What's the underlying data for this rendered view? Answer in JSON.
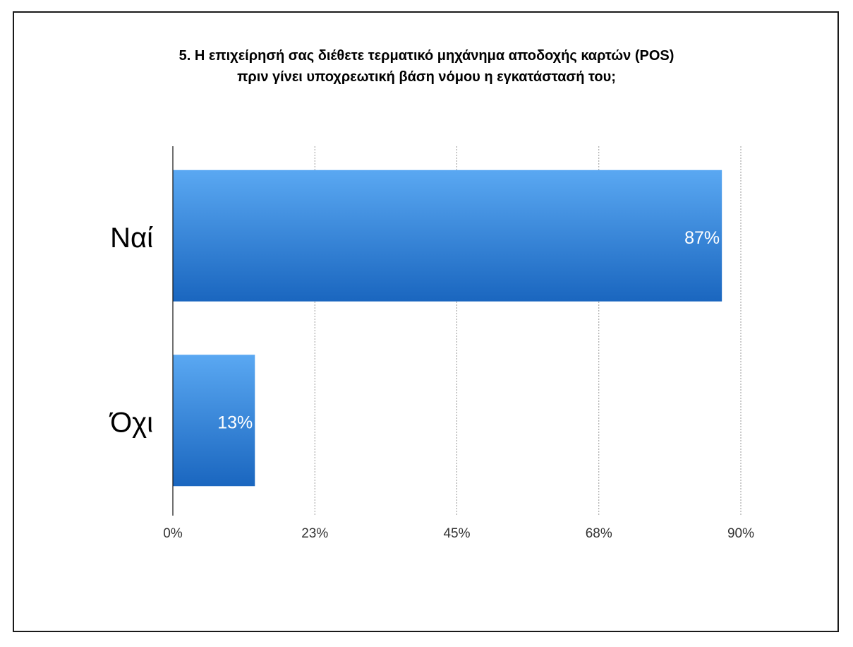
{
  "chart_data": {
    "type": "bar",
    "orientation": "horizontal",
    "title_lines": [
      "5. Η επιχείρησή σας διέθετε τερματικό μηχάνημα αποδοχής καρτών (POS)",
      "πριν γίνει υποχρεωτική βάση νόμου η εγκατάστασή του;"
    ],
    "categories": [
      "Ναί",
      "Όχι"
    ],
    "values": [
      87,
      13
    ],
    "value_labels": [
      "87%",
      "13%"
    ],
    "xlim": [
      0,
      90
    ],
    "xticks": [
      0,
      22.5,
      45,
      67.5,
      90
    ],
    "xtick_labels": [
      "0%",
      "23%",
      "45%",
      "68%",
      "90%"
    ],
    "grid": true,
    "bar_color": "#2f7fd6",
    "bar_color_top": "#5aa8f2",
    "bar_color_bottom": "#1a66bf"
  }
}
